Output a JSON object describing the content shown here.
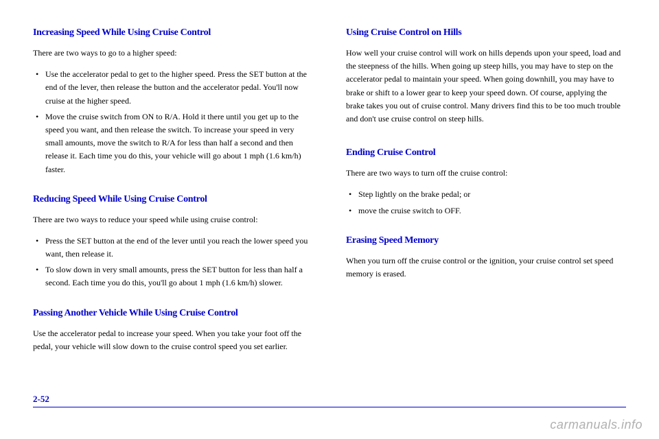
{
  "left": {
    "sec1": {
      "heading": "Increasing Speed While Using Cruise Control",
      "intro": "There are two ways to go to a higher speed:",
      "bullets": [
        "Use the accelerator pedal to get to the higher speed. Press the SET button at the end of the lever, then release the button and the accelerator pedal. You'll now cruise at the higher speed.",
        "Move the cruise switch from ON to R/A. Hold it there until you get up to the speed you want, and then release the switch. To increase your speed in very small amounts, move the switch to R/A for less than half a second and then release it. Each time you do this, your vehicle will go about 1 mph (1.6 km/h) faster."
      ]
    },
    "sec2": {
      "heading": "Reducing Speed While Using Cruise Control",
      "intro": "There are two ways to reduce your speed while using cruise control:",
      "bullets": [
        "Press the SET button at the end of the lever until you reach the lower speed you want, then release it.",
        "To slow down in very small amounts, press the SET button for less than half a second. Each time you do this, you'll go about 1 mph (1.6 km/h) slower."
      ]
    },
    "sec3": {
      "heading": "Passing Another Vehicle While Using Cruise Control",
      "body": "Use the accelerator pedal to increase your speed. When you take your foot off the pedal, your vehicle will slow down to the cruise control speed you set earlier."
    }
  },
  "right": {
    "sec1": {
      "heading": "Using Cruise Control on Hills",
      "p1": "How well your cruise control will work on hills depends upon your speed, load and the steepness of the hills. When going up steep hills, you may have to step on the accelerator pedal to maintain your speed. When going downhill, you may have to brake or shift to a lower gear to keep your speed down. Of course, applying the brake takes you out of cruise control. Many drivers find this to be too much trouble and don't use cruise control on steep hills."
    },
    "sec2": {
      "heading": "Ending Cruise Control",
      "intro": "There are two ways to turn off the cruise control:",
      "bullets": [
        "Step lightly on the brake pedal; or",
        "move the cruise switch to OFF."
      ]
    },
    "sec3": {
      "heading": "Erasing Speed Memory",
      "body": "When you turn off the cruise control or the ignition, your cruise control set speed memory is erased."
    }
  },
  "page_number": "2-52",
  "watermark": "carmanuals.info"
}
